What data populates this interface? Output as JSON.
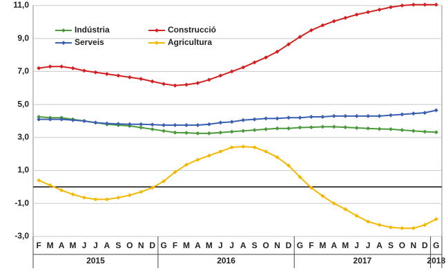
{
  "chart_data": {
    "type": "line",
    "year_groups": [
      {
        "label": "2015",
        "categories": [
          "F",
          "M",
          "A",
          "M",
          "J",
          "J",
          "A",
          "S",
          "O",
          "N",
          "D"
        ]
      },
      {
        "label": "2016",
        "categories": [
          "G",
          "F",
          "M",
          "A",
          "M",
          "J",
          "J",
          "A",
          "S",
          "O",
          "N",
          "D"
        ]
      },
      {
        "label": "2017",
        "categories": [
          "G",
          "F",
          "M",
          "A",
          "M",
          "J",
          "J",
          "A",
          "S",
          "O",
          "N",
          "D"
        ]
      },
      {
        "label": "2018",
        "categories": [
          "G"
        ]
      }
    ],
    "ylim": [
      -3,
      11
    ],
    "yticks": [
      {
        "value": -3,
        "label": "-3,0"
      },
      {
        "value": -1,
        "label": "-1,0"
      },
      {
        "value": 1,
        "label": "1,0"
      },
      {
        "value": 3,
        "label": "3,0"
      },
      {
        "value": 5,
        "label": "5,0"
      },
      {
        "value": 7,
        "label": "7,0"
      },
      {
        "value": 9,
        "label": "9,0"
      },
      {
        "value": 11,
        "label": "11,0"
      }
    ],
    "grid": true,
    "legend": "top-left",
    "series": [
      {
        "name": "Indústria",
        "color": "#4a9a3a",
        "values": [
          4.25,
          4.2,
          4.2,
          4.1,
          4.0,
          3.9,
          3.8,
          3.75,
          3.7,
          3.6,
          3.5,
          3.4,
          3.3,
          3.28,
          3.25,
          3.25,
          3.3,
          3.35,
          3.4,
          3.45,
          3.5,
          3.55,
          3.55,
          3.6,
          3.62,
          3.65,
          3.65,
          3.62,
          3.58,
          3.55,
          3.52,
          3.5,
          3.45,
          3.4,
          3.35,
          3.32
        ]
      },
      {
        "name": "Construcció",
        "color": "#d42020",
        "values": [
          7.2,
          7.3,
          7.3,
          7.2,
          7.05,
          6.95,
          6.85,
          6.75,
          6.65,
          6.55,
          6.4,
          6.25,
          6.15,
          6.2,
          6.3,
          6.5,
          6.75,
          7.0,
          7.25,
          7.55,
          7.85,
          8.2,
          8.65,
          9.1,
          9.5,
          9.8,
          10.05,
          10.25,
          10.45,
          10.6,
          10.75,
          10.9,
          11.0,
          11.05,
          11.05,
          11.05
        ]
      },
      {
        "name": "Serveis",
        "color": "#3a5fb0",
        "values": [
          4.1,
          4.1,
          4.1,
          4.05,
          4.0,
          3.9,
          3.85,
          3.82,
          3.8,
          3.8,
          3.78,
          3.75,
          3.75,
          3.75,
          3.75,
          3.8,
          3.9,
          3.95,
          4.05,
          4.1,
          4.15,
          4.15,
          4.2,
          4.2,
          4.25,
          4.25,
          4.3,
          4.3,
          4.3,
          4.3,
          4.3,
          4.35,
          4.4,
          4.45,
          4.5,
          4.65
        ]
      },
      {
        "name": "Agricultura",
        "color": "#f5b800",
        "values": [
          0.4,
          0.1,
          -0.2,
          -0.45,
          -0.65,
          -0.75,
          -0.75,
          -0.65,
          -0.5,
          -0.3,
          -0.05,
          0.35,
          0.9,
          1.35,
          1.65,
          1.9,
          2.15,
          2.4,
          2.45,
          2.4,
          2.15,
          1.8,
          1.3,
          0.6,
          -0.05,
          -0.55,
          -1.0,
          -1.35,
          -1.75,
          -2.1,
          -2.3,
          -2.45,
          -2.5,
          -2.5,
          -2.3,
          -1.95
        ]
      }
    ]
  }
}
